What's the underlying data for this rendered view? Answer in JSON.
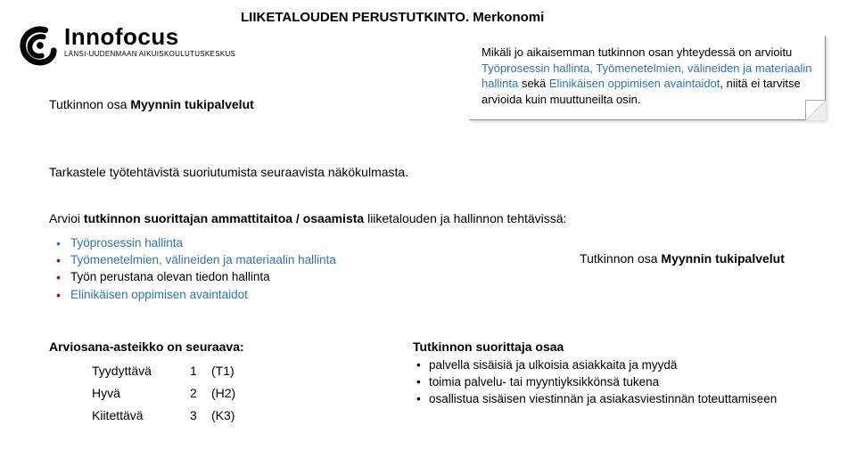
{
  "title": "LIIKETALOUDEN PERUSTUTKINTO. Merkonomi",
  "logo": {
    "brand": "Innofocus",
    "sub": "LÄNSI-UUDENMAAN AIKUISKOULUTUSKESKUS"
  },
  "section_label_prefix": "Tutkinnon osa ",
  "section_label_bold": "Myynnin tukipalvelut",
  "note": {
    "pre": "Mikäli jo aikaisemman tutkinnon osan yhteydessä on arvioitu ",
    "blue1": "Työprosessin hallinta, Työmenetelmien, välineiden ja materiaalin hallinta",
    "mid": " sekä ",
    "blue2": "Elinikäisen oppimisen avaintaidot",
    "post": ", niitä ei tarvitse arvioida kuin muuttuneilta osin."
  },
  "review_line": "Tarkastele työtehtävistä suoriutumista seuraavista näkökulmasta.",
  "assess": {
    "lead_pre": "Arvioi ",
    "lead_bold": "tutkinnon suorittajan ammattitaitoa / osaamista",
    "lead_post": " liiketalouden ja hallinnon tehtävissä:",
    "bullets": [
      {
        "text": "Työprosessin hallinta",
        "color": "#2e74b5",
        "red_dot": false
      },
      {
        "text": "Työmenetelmien, välineiden ja materiaalin hallinta",
        "color": "#2e74b5",
        "red_dot": true
      },
      {
        "text": "Työn perustana olevan tiedon hallinta",
        "color": "#000000",
        "red_dot": true
      },
      {
        "text": "Elinikäisen oppimisen avaintaidot",
        "color": "#2e74b5",
        "red_dot": true
      }
    ],
    "right_prefix": "Tutkinnon osa ",
    "right_bold": "Myynnin tukipalvelut"
  },
  "scale": {
    "title": "Arviosana-asteikko on seuraava:",
    "rows": [
      {
        "label": "Tyydyttävä",
        "num": "1",
        "code": "(T1)"
      },
      {
        "label": "Hyvä",
        "num": "2",
        "code": "(H2)"
      },
      {
        "label": "Kiitettävä",
        "num": "3",
        "code": "(K3)"
      }
    ]
  },
  "osaa": {
    "title": "Tutkinnon suorittaja osaa",
    "items": [
      "palvella sisäisiä ja ulkoisia asiakkaita ja myydä",
      "toimia palvelu- tai myyntiyksikkönsä tukena",
      "osallistua sisäisen viestinnän ja asiakasviestinnän toteuttamiseen"
    ]
  }
}
